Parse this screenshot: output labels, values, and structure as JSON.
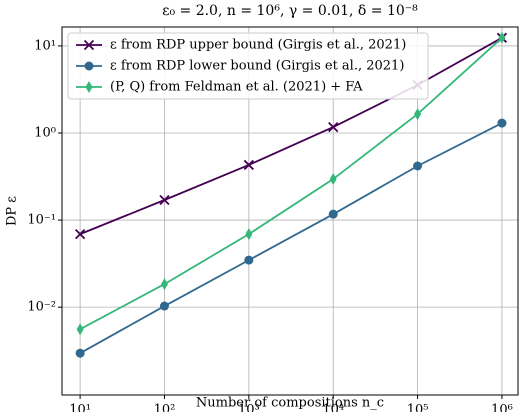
{
  "chart_data": {
    "type": "line",
    "title": "ε₀ = 2.0, n = 10⁶, γ = 0.01, δ = 10⁻⁸",
    "xlabel": "Number of compositions n_c",
    "ylabel": "DP ε",
    "x": [
      10,
      100,
      1000,
      10000,
      100000,
      1000000
    ],
    "series": [
      {
        "name": "ε from RDP upper bound (Girgis et al., 2021)",
        "color": "#440154",
        "marker": "x",
        "values": [
          0.069,
          0.17,
          0.43,
          1.17,
          3.56,
          12.4
        ]
      },
      {
        "name": "ε from RDP lower bound (Girgis et al., 2021)",
        "color": "#31688e",
        "marker": "circle",
        "values": [
          0.00296,
          0.0103,
          0.0347,
          0.117,
          0.418,
          1.3
        ]
      },
      {
        "name": "(P, Q) from Feldman et al. (2021) + FA",
        "color": "#35b779",
        "marker": "diamond",
        "values": [
          0.00558,
          0.0184,
          0.069,
          0.296,
          1.65,
          12.4
        ]
      }
    ],
    "xlog": true,
    "ylog": true,
    "xlim": [
      6.1,
      1550000
    ],
    "ylim": [
      0.00098,
      16.5
    ],
    "xticks": [
      {
        "value": 10,
        "label": "10¹"
      },
      {
        "value": 100,
        "label": "10²"
      },
      {
        "value": 1000,
        "label": "10³"
      },
      {
        "value": 10000,
        "label": "10⁴"
      },
      {
        "value": 100000,
        "label": "10⁵"
      },
      {
        "value": 1000000,
        "label": "10⁶"
      }
    ],
    "yticks": [
      {
        "value": 0.01,
        "label": "10⁻²"
      },
      {
        "value": 0.1,
        "label": "10⁻¹"
      },
      {
        "value": 1,
        "label": "10⁰"
      },
      {
        "value": 10,
        "label": "10¹"
      }
    ],
    "grid": true,
    "legend": "upper left"
  }
}
